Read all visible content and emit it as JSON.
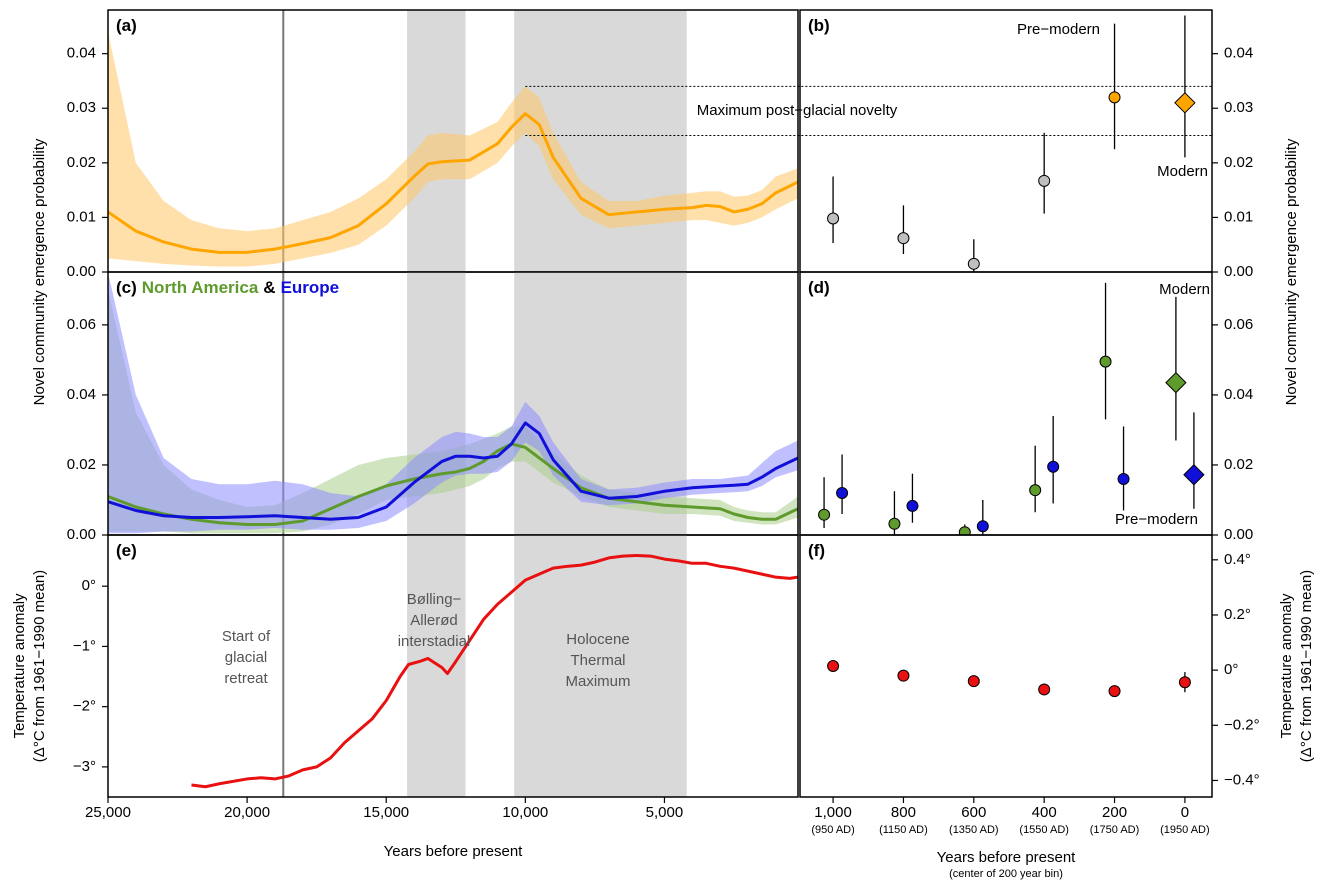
{
  "shared": {
    "shaded_periods": [
      [
        14250,
        12150
      ],
      [
        10400,
        4200
      ]
    ],
    "glacial_retreat": 18700
  },
  "chart_data": [
    {
      "type": "line",
      "panel_label": "(a)",
      "ylabel": "Novel community emergence probability",
      "xlim": [
        25000,
        200
      ],
      "ylim": [
        0,
        0.048
      ],
      "yticks": [
        {
          "value": 0,
          "label": "0.00"
        },
        {
          "value": 0.01,
          "label": "0.01"
        },
        {
          "value": 0.02,
          "label": "0.02"
        },
        {
          "value": 0.03,
          "label": "0.03"
        },
        {
          "value": 0.04,
          "label": "0.04"
        }
      ],
      "x": [
        25000,
        24000,
        23000,
        22000,
        21000,
        20000,
        19000,
        18000,
        17000,
        16000,
        15000,
        14000,
        13500,
        13000,
        12000,
        11000,
        10500,
        10000,
        9500,
        9000,
        8000,
        7000,
        6000,
        5000,
        4000,
        3500,
        3000,
        2500,
        2000,
        1500,
        1000,
        200
      ],
      "series": [
        {
          "color": "#ffa500",
          "band_color": "#ffc766",
          "values": [
            0.011,
            0.0075,
            0.0055,
            0.0042,
            0.0036,
            0.0036,
            0.0042,
            0.0052,
            0.0063,
            0.0085,
            0.0125,
            0.0175,
            0.0198,
            0.0202,
            0.0205,
            0.0235,
            0.0265,
            0.029,
            0.027,
            0.021,
            0.0135,
            0.0105,
            0.011,
            0.0115,
            0.0118,
            0.0122,
            0.012,
            0.011,
            0.0115,
            0.0125,
            0.0145,
            0.0165
          ],
          "lower": [
            0.0025,
            0.002,
            0.0015,
            0.0012,
            0.001,
            0.001,
            0.0015,
            0.0025,
            0.0035,
            0.005,
            0.0085,
            0.0135,
            0.0165,
            0.017,
            0.017,
            0.02,
            0.023,
            0.0255,
            0.023,
            0.017,
            0.0105,
            0.008,
            0.0085,
            0.009,
            0.0095,
            0.0095,
            0.009,
            0.0085,
            0.009,
            0.01,
            0.0115,
            0.0135
          ],
          "upper": [
            0.044,
            0.02,
            0.013,
            0.0095,
            0.008,
            0.0075,
            0.008,
            0.0095,
            0.011,
            0.0135,
            0.017,
            0.022,
            0.025,
            0.0255,
            0.025,
            0.0275,
            0.031,
            0.034,
            0.032,
            0.0255,
            0.0165,
            0.013,
            0.013,
            0.014,
            0.0145,
            0.0148,
            0.0148,
            0.0138,
            0.014,
            0.015,
            0.0175,
            0.019
          ]
        }
      ],
      "reference_band": {
        "label": "Maximum post−glacial novelty",
        "range": [
          0.025,
          0.034
        ]
      }
    },
    {
      "type": "scatter",
      "panel_label": "(b)",
      "ylabel": "Novel community emergence probability",
      "xlim": [
        1094,
        -77
      ],
      "ylim": [
        0,
        0.048
      ],
      "yticks": [
        {
          "value": 0,
          "label": "0.00"
        },
        {
          "value": 0.01,
          "label": "0.01"
        },
        {
          "value": 0.02,
          "label": "0.02"
        },
        {
          "value": 0.03,
          "label": "0.03"
        },
        {
          "value": 0.04,
          "label": "0.04"
        }
      ],
      "x": [
        1000,
        800,
        600,
        400,
        200,
        0
      ],
      "series": [
        {
          "colors": [
            "#bfbfbf",
            "#bfbfbf",
            "#bfbfbf",
            "#bfbfbf",
            "#ffa500",
            "#ffa500"
          ],
          "markers": [
            "circle",
            "circle",
            "circle",
            "circle",
            "circle",
            "diamond"
          ],
          "values": [
            0.0098,
            0.0062,
            0.0015,
            0.0167,
            0.032,
            0.031
          ],
          "lower": [
            0.0053,
            0.0033,
            0,
            0.0107,
            0.0225,
            0.021
          ],
          "upper": [
            0.0175,
            0.0122,
            0.006,
            0.0255,
            0.0455,
            0.047
          ]
        }
      ],
      "annotations": [
        "Pre−modern",
        "Modern"
      ]
    },
    {
      "type": "line",
      "panel_label": "(c)",
      "legend_joiner": "&",
      "xlim": [
        25000,
        200
      ],
      "ylim": [
        0,
        0.0751
      ],
      "yticks": [
        {
          "value": 0,
          "label": "0.00"
        },
        {
          "value": 0.02,
          "label": "0.02"
        },
        {
          "value": 0.04,
          "label": "0.04"
        },
        {
          "value": 0.06,
          "label": "0.06"
        }
      ],
      "x": [
        25000,
        24000,
        23000,
        22000,
        21000,
        20000,
        19000,
        18000,
        17000,
        16000,
        15000,
        14000,
        13000,
        12500,
        12000,
        11500,
        11000,
        10500,
        10000,
        9500,
        9000,
        8000,
        7000,
        6000,
        5000,
        4000,
        3000,
        2500,
        2000,
        1500,
        1000,
        200
      ],
      "series": [
        {
          "name": "North America",
          "color": "#5e9a2c",
          "band_color": "#a9cf8a",
          "values": [
            0.011,
            0.008,
            0.006,
            0.0045,
            0.0035,
            0.003,
            0.003,
            0.004,
            0.0075,
            0.011,
            0.014,
            0.016,
            0.0175,
            0.018,
            0.019,
            0.021,
            0.024,
            0.026,
            0.025,
            0.022,
            0.019,
            0.0135,
            0.0105,
            0.0095,
            0.0085,
            0.008,
            0.0075,
            0.006,
            0.005,
            0.0045,
            0.0045,
            0.0075
          ],
          "lower": [
            0.001,
            0.001,
            0.001,
            0.0005,
            0.0005,
            0.0005,
            0.0005,
            0.001,
            0.003,
            0.006,
            0.01,
            0.011,
            0.012,
            0.013,
            0.014,
            0.016,
            0.019,
            0.021,
            0.021,
            0.018,
            0.015,
            0.011,
            0.008,
            0.007,
            0.006,
            0.006,
            0.0055,
            0.004,
            0.0035,
            0.003,
            0.003,
            0.005
          ],
          "upper": [
            0.07,
            0.035,
            0.02,
            0.013,
            0.01,
            0.008,
            0.0085,
            0.012,
            0.016,
            0.02,
            0.022,
            0.023,
            0.024,
            0.025,
            0.026,
            0.0275,
            0.029,
            0.031,
            0.031,
            0.027,
            0.0235,
            0.017,
            0.013,
            0.012,
            0.011,
            0.0105,
            0.01,
            0.008,
            0.007,
            0.0065,
            0.0065,
            0.011
          ]
        },
        {
          "name": "Europe",
          "color": "#1010d8",
          "band_color": "#8c8cff",
          "values": [
            0.0095,
            0.007,
            0.0055,
            0.005,
            0.005,
            0.0052,
            0.0055,
            0.005,
            0.0045,
            0.005,
            0.008,
            0.015,
            0.021,
            0.0225,
            0.0225,
            0.022,
            0.0225,
            0.026,
            0.032,
            0.029,
            0.0215,
            0.0125,
            0.0105,
            0.011,
            0.0125,
            0.0135,
            0.014,
            0.0142,
            0.0145,
            0.0165,
            0.019,
            0.022
          ],
          "lower": [
            0.0005,
            0.0005,
            0.001,
            0.001,
            0.0015,
            0.0015,
            0.002,
            0.0015,
            0.0015,
            0.002,
            0.004,
            0.009,
            0.015,
            0.017,
            0.0175,
            0.0175,
            0.018,
            0.021,
            0.0265,
            0.024,
            0.017,
            0.0095,
            0.0085,
            0.009,
            0.0105,
            0.0115,
            0.012,
            0.0122,
            0.0125,
            0.014,
            0.0165,
            0.0185
          ],
          "upper": [
            0.075,
            0.04,
            0.022,
            0.016,
            0.0145,
            0.0145,
            0.0155,
            0.0145,
            0.012,
            0.011,
            0.0145,
            0.022,
            0.028,
            0.0295,
            0.029,
            0.028,
            0.028,
            0.031,
            0.038,
            0.034,
            0.0265,
            0.016,
            0.013,
            0.0135,
            0.015,
            0.016,
            0.016,
            0.0165,
            0.017,
            0.0205,
            0.024,
            0.027
          ]
        }
      ]
    },
    {
      "type": "scatter",
      "panel_label": "(d)",
      "xlim": [
        1094,
        -77
      ],
      "ylim": [
        0,
        0.0751
      ],
      "yticks": [
        {
          "value": 0,
          "label": "0.00"
        },
        {
          "value": 0.02,
          "label": "0.02"
        },
        {
          "value": 0.04,
          "label": "0.04"
        },
        {
          "value": 0.06,
          "label": "0.06"
        }
      ],
      "x": [
        1000,
        800,
        600,
        400,
        200,
        0
      ],
      "series": [
        {
          "color": "#5e9a2c",
          "markers": [
            "circle",
            "circle",
            "circle",
            "circle",
            "circle",
            "diamond"
          ],
          "values": [
            0.0058,
            0.0032,
            0.0008,
            0.0128,
            0.0495,
            0.0435
          ],
          "lower": [
            0.002,
            0,
            0,
            0.0065,
            0.033,
            0.027
          ],
          "upper": [
            0.0165,
            0.0125,
            0.003,
            0.0255,
            0.072,
            0.068
          ]
        },
        {
          "color": "#1010d8",
          "markers": [
            "circle",
            "circle",
            "circle",
            "circle",
            "circle",
            "diamond"
          ],
          "values": [
            0.012,
            0.0083,
            0.0025,
            0.0195,
            0.016,
            0.0172
          ],
          "lower": [
            0.006,
            0.0035,
            0,
            0.009,
            0.007,
            0.0075
          ],
          "upper": [
            0.023,
            0.0175,
            0.01,
            0.034,
            0.031,
            0.035
          ]
        }
      ],
      "annotations": [
        "Modern",
        "Pre−modern"
      ]
    },
    {
      "type": "line",
      "panel_label": "(e)",
      "ylabel": [
        "Temperature anomaly",
        "(Δ°C from 1961−1990 mean)"
      ],
      "xlabel": "Years before present",
      "xlim": [
        25000,
        200
      ],
      "ylim": [
        -3.5,
        0.85
      ],
      "xticks": [
        {
          "value": 25000,
          "label": "25,000"
        },
        {
          "value": 20000,
          "label": "20,000"
        },
        {
          "value": 15000,
          "label": "15,000"
        },
        {
          "value": 10000,
          "label": "10,000"
        },
        {
          "value": 5000,
          "label": "5,000"
        }
      ],
      "yticks": [
        {
          "value": -3,
          "label": "−3°"
        },
        {
          "value": -2,
          "label": "−2°"
        },
        {
          "value": -1,
          "label": "−1°"
        },
        {
          "value": 0,
          "label": "0°"
        }
      ],
      "x": [
        22000,
        21500,
        21000,
        20000,
        19500,
        19000,
        18500,
        18000,
        17500,
        17000,
        16500,
        16000,
        15500,
        15000,
        14500,
        14200,
        13800,
        13500,
        13000,
        12800,
        12500,
        12000,
        11500,
        11000,
        10500,
        10000,
        9500,
        9000,
        8500,
        8000,
        7500,
        7000,
        6500,
        6000,
        5500,
        5000,
        4500,
        4000,
        3500,
        3000,
        2500,
        2000,
        1500,
        1000,
        500,
        200
      ],
      "series": [
        {
          "color": "#e81010",
          "values": [
            -3.3,
            -3.33,
            -3.28,
            -3.2,
            -3.18,
            -3.2,
            -3.15,
            -3.05,
            -3.0,
            -2.85,
            -2.6,
            -2.4,
            -2.2,
            -1.9,
            -1.5,
            -1.3,
            -1.25,
            -1.2,
            -1.35,
            -1.45,
            -1.25,
            -0.9,
            -0.55,
            -0.3,
            -0.1,
            0.1,
            0.2,
            0.3,
            0.33,
            0.35,
            0.4,
            0.47,
            0.5,
            0.51,
            0.5,
            0.45,
            0.42,
            0.38,
            0.38,
            0.33,
            0.3,
            0.25,
            0.2,
            0.15,
            0.13,
            0.15
          ]
        }
      ],
      "annotations": [
        [
          "Start of",
          "glacial",
          "retreat"
        ],
        [
          "Bølling−",
          "Allerød",
          "interstadial"
        ],
        [
          "Holocene",
          "Thermal",
          "Maximum"
        ]
      ]
    },
    {
      "type": "scatter",
      "panel_label": "(f)",
      "ylabel": [
        "Temperature anomaly",
        "(Δ°C from 1961−1990 mean)"
      ],
      "xlabel": "Years before present",
      "xlabel_note": "(center of 200 year bin)",
      "xlim": [
        1094,
        -77
      ],
      "ylim": [
        -0.46,
        0.49
      ],
      "xticks": [
        {
          "value": 1000,
          "label": "1,000"
        },
        800,
        600,
        400,
        200,
        0
      ],
      "xtick_sublabels": [
        "(950 AD)",
        "(1150 AD)",
        "(1350 AD)",
        "(1550 AD)",
        "(1750 AD)",
        "(1950 AD)"
      ],
      "yticks": [
        {
          "value": -0.4,
          "label": "−0.4°"
        },
        {
          "value": -0.2,
          "label": "−0.2°"
        },
        {
          "value": 0,
          "label": "0°"
        },
        {
          "value": 0.2,
          "label": "0.2°"
        },
        {
          "value": 0.4,
          "label": "0.4°"
        }
      ],
      "x": [
        1000,
        800,
        600,
        400,
        200,
        0
      ],
      "series": [
        {
          "color": "#e81010",
          "markers": [
            "circle",
            "circle",
            "circle",
            "circle",
            "circle",
            "circle"
          ],
          "values": [
            0.015,
            -0.02,
            -0.04,
            -0.07,
            -0.076,
            -0.044
          ],
          "lower": [
            null,
            null,
            null,
            null,
            null,
            -0.08
          ],
          "upper": [
            null,
            null,
            null,
            null,
            null,
            -0.007
          ]
        }
      ]
    }
  ]
}
